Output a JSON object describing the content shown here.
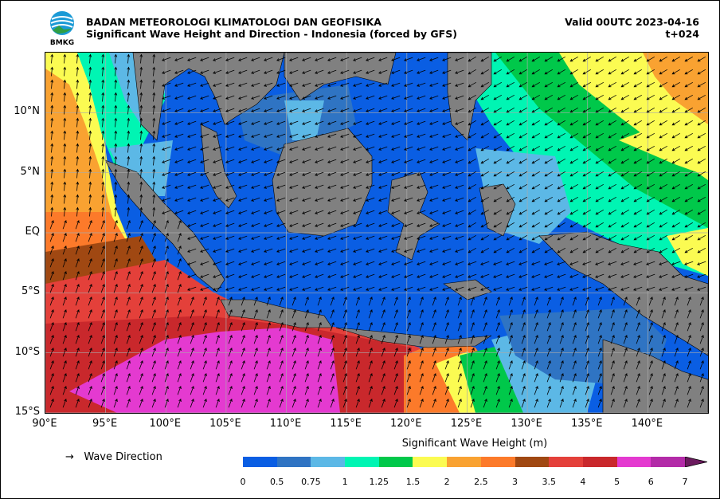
{
  "header": {
    "agency": "BADAN METEOROLOGI KLIMATOLOGI DAN GEOFISIKA",
    "product": "Significant Wave Height and Direction - Indonesia (forced by GFS)",
    "valid": "Valid 00UTC 2023-04-16",
    "lead": "t+024",
    "logo_text": "BMKG"
  },
  "map": {
    "lon_range": [
      90,
      145
    ],
    "lat_range": [
      -15,
      15
    ],
    "x_ticks": [
      "90°E",
      "95°E",
      "100°E",
      "105°E",
      "110°E",
      "115°E",
      "120°E",
      "125°E",
      "130°E",
      "135°E",
      "140°E"
    ],
    "y_ticks": [
      "10°N",
      "5°N",
      "EQ",
      "5°S",
      "10°S",
      "15°S"
    ],
    "land_color": "#808080",
    "grid": true
  },
  "legend": {
    "arrow_symbol": "→",
    "arrow_label": "Wave Direction"
  },
  "colorbar": {
    "title": "Significant Wave Height (m)",
    "labels": [
      "0",
      "0.5",
      "0.75",
      "1",
      "1.25",
      "1.5",
      "2",
      "2.5",
      "3",
      "3.5",
      "4",
      "5",
      "6",
      "7"
    ],
    "colors": [
      "#0a5ee3",
      "#2f74c3",
      "#5cb8e6",
      "#00f5b3",
      "#00c84a",
      "#fbfb52",
      "#f9a231",
      "#fc7a2a",
      "#a04812",
      "#e4403a",
      "#c9282c",
      "#e43ad0",
      "#b32ba8"
    ],
    "extend_color": "#6b1a5e"
  }
}
